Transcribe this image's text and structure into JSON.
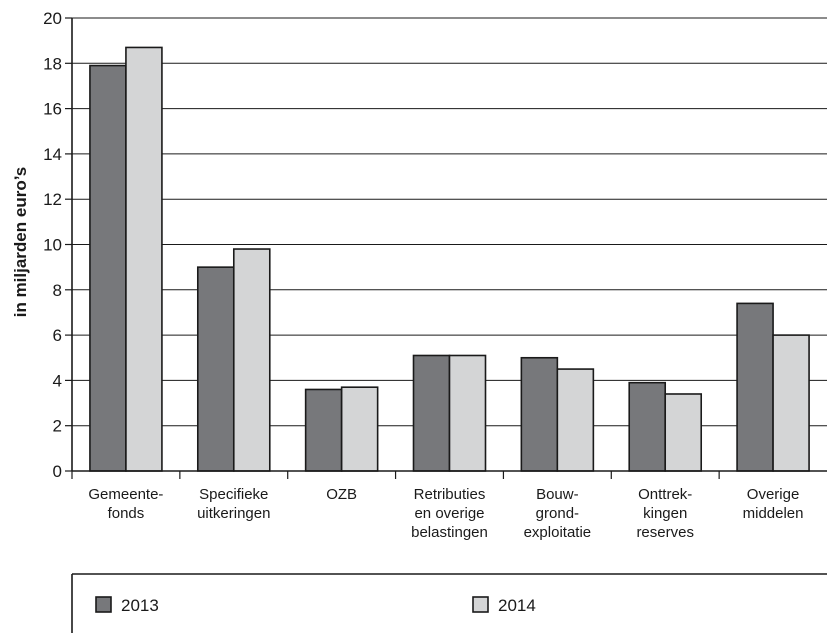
{
  "chart_data": {
    "type": "bar",
    "title": "",
    "xlabel": "",
    "ylabel": "in miljarden euro’s",
    "ylim": [
      0,
      20
    ],
    "yticks": [
      0,
      2,
      4,
      6,
      8,
      10,
      12,
      14,
      16,
      18,
      20
    ],
    "grid": true,
    "legend_position": "bottom",
    "categories": [
      [
        "Gemeente-",
        "fonds"
      ],
      [
        "Specifieke",
        "uitkeringen"
      ],
      [
        "OZB"
      ],
      [
        "Retributies",
        "en overige",
        "belastingen"
      ],
      [
        "Bouw-",
        "grond-",
        "exploitatie"
      ],
      [
        "Onttrek-",
        "kingen",
        "reserves"
      ],
      [
        "Overige",
        "middelen"
      ]
    ],
    "series": [
      {
        "name": "2013",
        "color": "#77787b",
        "values": [
          17.9,
          9.0,
          3.6,
          5.1,
          5.0,
          3.9,
          7.4
        ]
      },
      {
        "name": "2014",
        "color": "#d4d5d6",
        "values": [
          18.7,
          9.8,
          3.7,
          5.1,
          4.5,
          3.4,
          6.0
        ]
      }
    ]
  }
}
